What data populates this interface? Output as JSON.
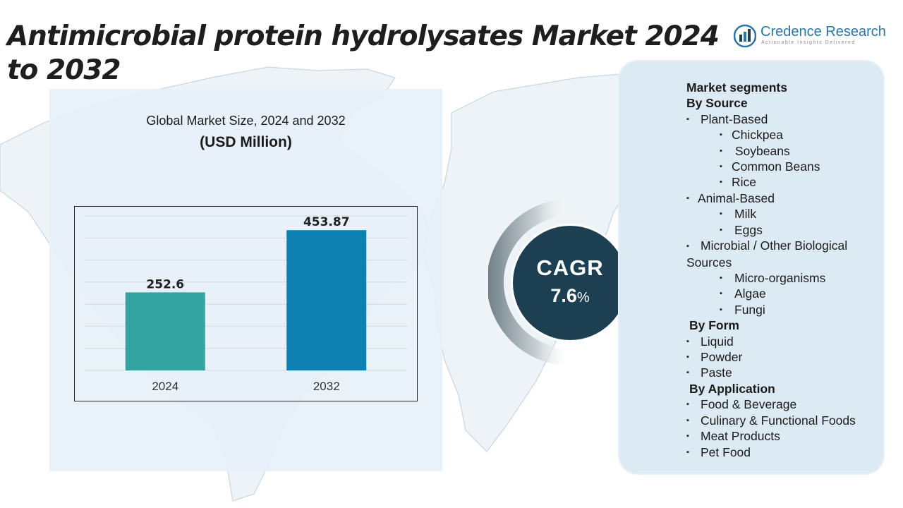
{
  "title": "Antimicrobial protein hydrolysates Market 2024 to 2032",
  "logo": {
    "name": "Credence Research",
    "tagline": "Actionable Insights Delivered"
  },
  "chart_data": {
    "type": "bar",
    "title": "Global Market Size, 2024 and 2032",
    "subtitle": "(USD Million)",
    "categories": [
      "2024",
      "2032"
    ],
    "values": [
      252.6,
      453.87
    ],
    "value_labels": [
      "252.6",
      "453.87"
    ],
    "colors": [
      "#35a3a1",
      "#0d7fb1"
    ],
    "ylim": [
      0,
      500
    ],
    "grid": true,
    "xlabel": "",
    "ylabel": ""
  },
  "cagr": {
    "label": "CAGR",
    "value": "7.6",
    "unit": "%"
  },
  "segments": {
    "heading": "Market segments",
    "source": {
      "heading": "By Source",
      "plant": "Plant-Based",
      "plant_items": [
        "Chickpea",
        " Soybeans",
        "Common Beans",
        "Rice"
      ],
      "animal": "Animal-Based",
      "animal_items": [
        "Milk",
        "Eggs"
      ],
      "microbial": "Microbial / Other Biological Sources",
      "microbial_items": [
        "Micro-organisms",
        "Algae",
        "Fungi"
      ]
    },
    "form": {
      "heading": "By Form",
      "items": [
        "Liquid",
        "Powder",
        "Paste"
      ]
    },
    "application": {
      "heading": "By Application",
      "items": [
        "Food & Beverage",
        "Culinary & Functional Foods",
        "Meat Products",
        "Pet Food"
      ]
    }
  },
  "colors": {
    "cagr_bg": "#1d3f52",
    "panel_bg": "#dceaf3",
    "chart_bg": "#e7f1f8",
    "brand": "#2a74a6"
  }
}
